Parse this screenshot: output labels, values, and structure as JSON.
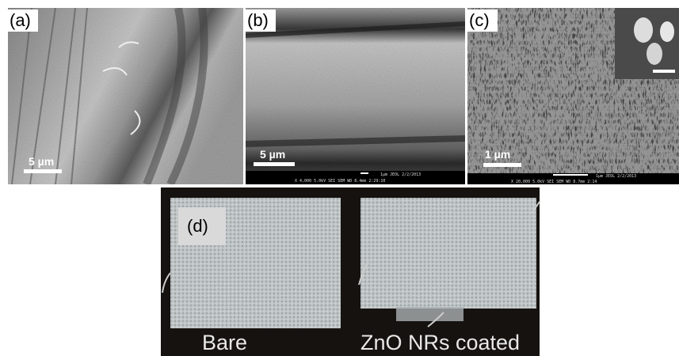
{
  "panels": [
    {
      "label": "(a)",
      "scale_bar": "5 µm"
    },
    {
      "label": "(b)",
      "scale_bar": "5 µm",
      "footer": [
        "1μm  JEOL  2/2/2013",
        "X 4,000   5.0kV  SEI   SEM   WD 8.4mm  2:29:10"
      ]
    },
    {
      "label": "(c)",
      "scale_bar": "1 µm",
      "footer": [
        "1μm  JEOL  2/2/2013",
        "X 20,000   5.0kV  SEI   SEM   WD 8.7mm  2:14"
      ]
    },
    {
      "label": "(d)",
      "captions": [
        "Bare",
        "ZnO NRs coated"
      ]
    }
  ]
}
